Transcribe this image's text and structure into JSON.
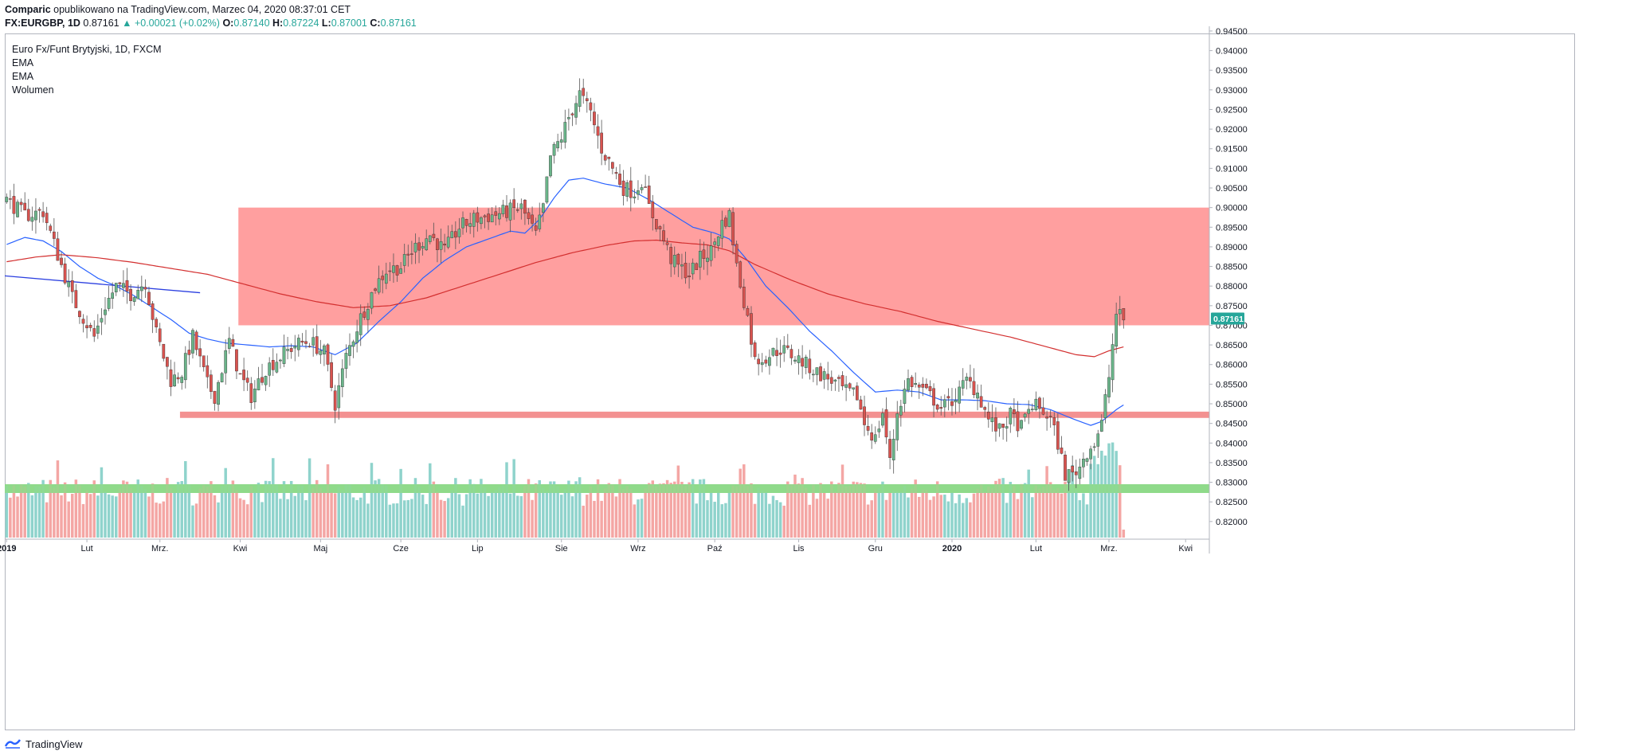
{
  "header": {
    "author": "Comparic",
    "published": "opublikowano na TradingView.com, Marzec 04, 2020 08:37:01 CET",
    "symbol": "FX:EURGBP, 1D",
    "last": "0.87161",
    "change": "▲ +0.00021 (+0.02%)",
    "o_label": "O:",
    "o_value": "0.87140",
    "h_label": "H:",
    "h_value": "0.87224",
    "l_label": "L:",
    "l_value": "0.87001",
    "c_label": "C:",
    "c_value": "0.87161"
  },
  "legend": {
    "title": "Euro Fx/Funt Brytyjski, 1D, FXCM",
    "items": [
      "EMA",
      "EMA",
      "Wolumen"
    ]
  },
  "footer": {
    "brand": "TradingView"
  },
  "colors": {
    "up": "#26a69a",
    "up_body": "#6ab58a",
    "down": "#d9534f",
    "resistance_zone": "#ff9a9a",
    "support_line": "#f28b8b",
    "volume_zone": "#8ed98a",
    "ema_fast": "#2962ff",
    "ema_slow": "#d32f2f",
    "trendline": "#2b3fe0",
    "last_tag": "#26a69a"
  },
  "chart_data": {
    "type": "candlestick",
    "title": "Euro Fx/Funt Brytyjski, 1D, FXCM",
    "y_axis": {
      "min": 0.8155,
      "max": 0.946,
      "scale": "linear",
      "ticks": [
        "0.94500",
        "0.94000",
        "0.93500",
        "0.93000",
        "0.92500",
        "0.92000",
        "0.91500",
        "0.91000",
        "0.90500",
        "0.90000",
        "0.89500",
        "0.89000",
        "0.88500",
        "0.88000",
        "0.87500",
        "0.87000",
        "0.86500",
        "0.86000",
        "0.85500",
        "0.85000",
        "0.84500",
        "0.84000",
        "0.83500",
        "0.83000",
        "0.82500",
        "0.82000"
      ],
      "tick_values": [
        0.945,
        0.94,
        0.935,
        0.93,
        0.925,
        0.92,
        0.915,
        0.91,
        0.905,
        0.9,
        0.895,
        0.89,
        0.885,
        0.88,
        0.875,
        0.87,
        0.865,
        0.86,
        0.855,
        0.85,
        0.845,
        0.84,
        0.835,
        0.83,
        0.825,
        0.82
      ]
    },
    "x_axis": {
      "labels": [
        "2019",
        "Lut",
        "Mrz.",
        "Kwi",
        "Maj",
        "Cze",
        "Lip",
        "Sie",
        "Wrz",
        "Paź",
        "Lis",
        "Gru",
        "2020",
        "Lut",
        "Mrz.",
        "Kwi"
      ],
      "bold": [
        "2019",
        "2020"
      ],
      "label_index": [
        0,
        22,
        42,
        64,
        86,
        108,
        129,
        152,
        173,
        194,
        217,
        238,
        259,
        282,
        302,
        323
      ]
    },
    "last_price": 0.87161,
    "last_price_label": "0.87161",
    "zones": [
      {
        "name": "resistance",
        "from_index": 64,
        "to_index": 330,
        "low": 0.87,
        "high": 0.9
      },
      {
        "name": "support",
        "from_index": 48,
        "to_index": 330,
        "low": 0.8464,
        "high": 0.848
      },
      {
        "name": "volume-level",
        "from_index": 0,
        "to_index": 330,
        "low_frac": 0.58,
        "high_frac": 0.7
      }
    ],
    "trendline": {
      "from": [
        0,
        0.8826
      ],
      "to": [
        53,
        0.8783
      ]
    },
    "series": [
      {
        "name": "close-path",
        "points": [
          [
            0,
            0.902
          ],
          [
            5,
            0.898
          ],
          [
            10,
            0.899
          ],
          [
            14,
            0.888
          ],
          [
            18,
            0.877
          ],
          [
            24,
            0.867
          ],
          [
            27,
            0.875
          ],
          [
            30,
            0.88
          ],
          [
            34,
            0.878
          ],
          [
            38,
            0.881
          ],
          [
            41,
            0.868
          ],
          [
            45,
            0.856
          ],
          [
            48,
            0.858
          ],
          [
            51,
            0.867
          ],
          [
            55,
            0.855
          ],
          [
            57,
            0.852
          ],
          [
            61,
            0.866
          ],
          [
            64,
            0.857
          ],
          [
            67,
            0.852
          ],
          [
            71,
            0.859
          ],
          [
            75,
            0.862
          ],
          [
            79,
            0.865
          ],
          [
            83,
            0.866
          ],
          [
            87,
            0.863
          ],
          [
            90,
            0.85
          ],
          [
            93,
            0.862
          ],
          [
            97,
            0.872
          ],
          [
            101,
            0.88
          ],
          [
            104,
            0.884
          ],
          [
            108,
            0.885
          ],
          [
            112,
            0.89
          ],
          [
            116,
            0.893
          ],
          [
            120,
            0.889
          ],
          [
            124,
            0.895
          ],
          [
            128,
            0.897
          ],
          [
            133,
            0.898
          ],
          [
            137,
            0.899
          ],
          [
            141,
            0.9
          ],
          [
            145,
            0.893
          ],
          [
            147,
            0.9
          ],
          [
            149,
            0.913
          ],
          [
            152,
            0.918
          ],
          [
            154,
            0.923
          ],
          [
            157,
            0.929
          ],
          [
            160,
            0.924
          ],
          [
            163,
            0.915
          ],
          [
            166,
            0.91
          ],
          [
            169,
            0.905
          ],
          [
            172,
            0.904
          ],
          [
            174,
            0.907
          ],
          [
            176,
            0.9
          ],
          [
            179,
            0.894
          ],
          [
            182,
            0.887
          ],
          [
            184,
            0.885
          ],
          [
            187,
            0.883
          ],
          [
            190,
            0.887
          ],
          [
            193,
            0.889
          ],
          [
            196,
            0.896
          ],
          [
            198,
            0.898
          ],
          [
            200,
            0.885
          ],
          [
            203,
            0.872
          ],
          [
            205,
            0.861
          ],
          [
            208,
            0.862
          ],
          [
            212,
            0.864
          ],
          [
            216,
            0.862
          ],
          [
            219,
            0.86
          ],
          [
            222,
            0.858
          ],
          [
            226,
            0.856
          ],
          [
            230,
            0.853
          ],
          [
            233,
            0.852
          ],
          [
            235,
            0.845
          ],
          [
            238,
            0.841
          ],
          [
            240,
            0.848
          ],
          [
            242,
            0.835
          ],
          [
            244,
            0.848
          ],
          [
            247,
            0.856
          ],
          [
            250,
            0.854
          ],
          [
            253,
            0.852
          ],
          [
            256,
            0.849
          ],
          [
            258,
            0.85
          ],
          [
            261,
            0.853
          ],
          [
            263,
            0.856
          ],
          [
            266,
            0.853
          ],
          [
            269,
            0.846
          ],
          [
            272,
            0.843
          ],
          [
            275,
            0.847
          ],
          [
            278,
            0.844
          ],
          [
            281,
            0.85
          ],
          [
            284,
            0.848
          ],
          [
            286,
            0.846
          ],
          [
            288,
            0.84
          ],
          [
            290,
            0.832
          ],
          [
            292,
            0.832
          ],
          [
            294,
            0.834
          ],
          [
            296,
            0.838
          ],
          [
            298,
            0.84
          ],
          [
            300,
            0.845
          ],
          [
            302,
            0.857
          ],
          [
            303,
            0.865
          ],
          [
            304,
            0.873
          ],
          [
            306,
            0.8716
          ]
        ]
      },
      {
        "name": "EMA",
        "points": [
          [
            0,
            0.8906
          ],
          [
            5,
            0.8924
          ],
          [
            10,
            0.8915
          ],
          [
            15,
            0.8888
          ],
          [
            20,
            0.885
          ],
          [
            25,
            0.882
          ],
          [
            30,
            0.88
          ],
          [
            35,
            0.8775
          ],
          [
            40,
            0.8745
          ],
          [
            45,
            0.8715
          ],
          [
            50,
            0.868
          ],
          [
            55,
            0.8665
          ],
          [
            60,
            0.8655
          ],
          [
            66,
            0.865
          ],
          [
            72,
            0.8645
          ],
          [
            78,
            0.8648
          ],
          [
            84,
            0.8645
          ],
          [
            90,
            0.8625
          ],
          [
            96,
            0.8655
          ],
          [
            102,
            0.871
          ],
          [
            108,
            0.876
          ],
          [
            114,
            0.882
          ],
          [
            120,
            0.8865
          ],
          [
            126,
            0.89
          ],
          [
            132,
            0.892
          ],
          [
            138,
            0.894
          ],
          [
            142,
            0.8935
          ],
          [
            146,
            0.897
          ],
          [
            150,
            0.9025
          ],
          [
            154,
            0.907
          ],
          [
            158,
            0.9075
          ],
          [
            164,
            0.906
          ],
          [
            170,
            0.905
          ],
          [
            176,
            0.902
          ],
          [
            182,
            0.8985
          ],
          [
            188,
            0.895
          ],
          [
            194,
            0.8935
          ],
          [
            198,
            0.892
          ],
          [
            203,
            0.8865
          ],
          [
            208,
            0.88
          ],
          [
            214,
            0.8745
          ],
          [
            220,
            0.8685
          ],
          [
            226,
            0.8635
          ],
          [
            232,
            0.858
          ],
          [
            238,
            0.853
          ],
          [
            244,
            0.8535
          ],
          [
            250,
            0.853
          ],
          [
            256,
            0.851
          ],
          [
            262,
            0.851
          ],
          [
            268,
            0.8508
          ],
          [
            274,
            0.85
          ],
          [
            280,
            0.8498
          ],
          [
            286,
            0.8485
          ],
          [
            292,
            0.8462
          ],
          [
            297,
            0.8445
          ],
          [
            300,
            0.8455
          ],
          [
            304,
            0.8485
          ],
          [
            306,
            0.8497
          ]
        ]
      },
      {
        "name": "EMA",
        "points": [
          [
            0,
            0.8862
          ],
          [
            8,
            0.8874
          ],
          [
            15,
            0.888
          ],
          [
            25,
            0.8872
          ],
          [
            35,
            0.886
          ],
          [
            45,
            0.8845
          ],
          [
            55,
            0.883
          ],
          [
            65,
            0.8805
          ],
          [
            75,
            0.878
          ],
          [
            85,
            0.876
          ],
          [
            95,
            0.8745
          ],
          [
            105,
            0.875
          ],
          [
            115,
            0.877
          ],
          [
            125,
            0.88
          ],
          [
            135,
            0.883
          ],
          [
            145,
            0.886
          ],
          [
            155,
            0.8885
          ],
          [
            165,
            0.8905
          ],
          [
            172,
            0.8915
          ],
          [
            178,
            0.8917
          ],
          [
            185,
            0.891
          ],
          [
            192,
            0.8905
          ],
          [
            198,
            0.889
          ],
          [
            205,
            0.8855
          ],
          [
            215,
            0.8815
          ],
          [
            225,
            0.878
          ],
          [
            235,
            0.8755
          ],
          [
            245,
            0.8735
          ],
          [
            255,
            0.871
          ],
          [
            265,
            0.869
          ],
          [
            275,
            0.867
          ],
          [
            285,
            0.8645
          ],
          [
            293,
            0.8625
          ],
          [
            298,
            0.862
          ],
          [
            302,
            0.8635
          ],
          [
            306,
            0.8645
          ]
        ]
      }
    ]
  }
}
